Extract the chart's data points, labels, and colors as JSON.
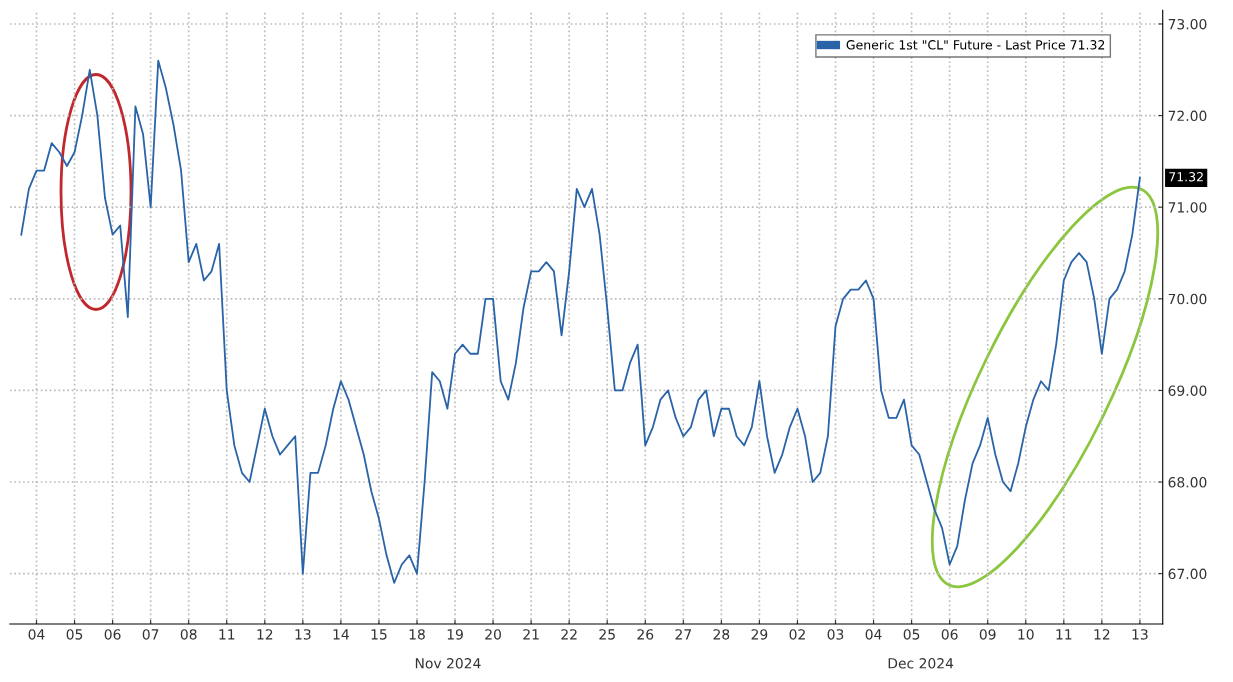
{
  "chart_data": {
    "type": "line",
    "legend": "top right",
    "grid": true,
    "marker": "none",
    "line_style": "solid",
    "ylim": [
      66.45,
      73.15
    ],
    "categories": [
      null,
      null,
      "04",
      null,
      null,
      null,
      null,
      "05",
      null,
      null,
      null,
      null,
      "06",
      null,
      null,
      null,
      null,
      "07",
      null,
      null,
      null,
      null,
      "08",
      null,
      null,
      null,
      null,
      "11",
      null,
      null,
      null,
      null,
      "12",
      null,
      null,
      null,
      null,
      "13",
      null,
      null,
      null,
      null,
      "14",
      null,
      null,
      null,
      null,
      "15",
      null,
      null,
      null,
      null,
      "18",
      null,
      null,
      null,
      null,
      "19",
      null,
      null,
      null,
      null,
      "20",
      null,
      null,
      null,
      null,
      "21",
      null,
      null,
      null,
      null,
      "22",
      null,
      null,
      null,
      null,
      "25",
      null,
      null,
      null,
      null,
      "26",
      null,
      null,
      null,
      null,
      "27",
      null,
      null,
      null,
      null,
      "28",
      null,
      null,
      null,
      null,
      "29",
      null,
      null,
      null,
      null,
      "02",
      null,
      null,
      null,
      null,
      "03",
      null,
      null,
      null,
      null,
      "04",
      null,
      null,
      null,
      null,
      "05",
      null,
      null,
      null,
      null,
      "06",
      null,
      null,
      null,
      null,
      "09",
      null,
      null,
      null,
      null,
      "10",
      null,
      null,
      null,
      null,
      "11",
      null,
      null,
      null,
      null,
      "12",
      null,
      null,
      null,
      null,
      "13"
    ],
    "yticks": [
      {
        "value": 67,
        "label": "67.00"
      },
      {
        "value": 68,
        "label": "68.00"
      },
      {
        "value": 69,
        "label": "69.00"
      },
      {
        "value": 70,
        "label": "70.00"
      },
      {
        "value": 71,
        "label": "71.00"
      },
      {
        "value": 72,
        "label": "72.00"
      },
      {
        "value": 73,
        "label": "73.00"
      }
    ],
    "annotations": [
      "Nov 2024",
      "Dec 2024",
      "71.32"
    ],
    "series": [
      {
        "name": "Generic 1st \"CL\" Future - Last Price 71.32",
        "color": "#2a64a8",
        "values": [
          70.7,
          71.2,
          71.4,
          71.4,
          71.7,
          71.6,
          71.45,
          71.6,
          72.0,
          72.5,
          72.0,
          71.1,
          70.7,
          70.8,
          69.8,
          72.1,
          71.8,
          71.0,
          72.6,
          72.3,
          71.9,
          71.4,
          70.4,
          70.6,
          70.2,
          70.3,
          70.6,
          69.0,
          68.4,
          68.1,
          68.0,
          68.4,
          68.8,
          68.5,
          68.3,
          68.4,
          68.5,
          67.0,
          68.1,
          68.1,
          68.4,
          68.8,
          69.1,
          68.9,
          68.6,
          68.3,
          67.9,
          67.6,
          67.2,
          66.9,
          67.1,
          67.2,
          67.0,
          68.0,
          69.2,
          69.1,
          68.8,
          69.4,
          69.5,
          69.4,
          69.4,
          70.0,
          70.0,
          69.1,
          68.9,
          69.3,
          69.9,
          70.3,
          70.3,
          70.4,
          70.3,
          69.6,
          70.3,
          71.2,
          71.0,
          71.2,
          70.7,
          69.9,
          69.0,
          69.0,
          69.3,
          69.5,
          68.4,
          68.6,
          68.9,
          69.0,
          68.7,
          68.5,
          68.6,
          68.9,
          69.0,
          68.5,
          68.8,
          68.8,
          68.5,
          68.4,
          68.6,
          69.1,
          68.5,
          68.1,
          68.3,
          68.6,
          68.8,
          68.5,
          68.0,
          68.1,
          68.5,
          69.7,
          70.0,
          70.1,
          70.1,
          70.2,
          70.0,
          69.0,
          68.7,
          68.7,
          68.9,
          68.4,
          68.3,
          68.0,
          67.7,
          67.5,
          67.1,
          67.3,
          67.8,
          68.2,
          68.4,
          68.7,
          68.3,
          68.0,
          67.9,
          68.2,
          68.6,
          68.9,
          69.1,
          69.0,
          69.5,
          70.2,
          70.4,
          70.5,
          70.4,
          70.0,
          69.4,
          70.0,
          70.1,
          70.3,
          70.7,
          71.32
        ]
      }
    ]
  }
}
